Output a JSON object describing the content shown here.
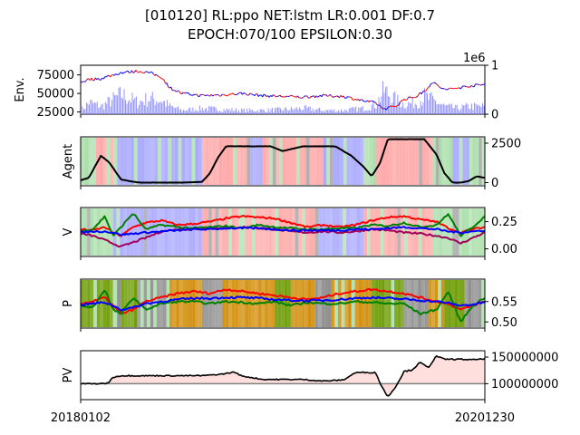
{
  "figure": {
    "title_line1": "[010120] RL:ppo NET:lstm LR:0.001 DF:0.7",
    "title_line2": "EPOCH:070/100 EPSILON:0.30"
  },
  "colors": {
    "price": "#ff0000",
    "price_alt": "#0000ff",
    "volume": "#8a8aff",
    "agent_line": "#000000",
    "buy_bg": "#ff9a9a",
    "sell_bg": "#9a9aff",
    "hold_bg": "#9ad89a",
    "v_red": "#ff0000",
    "v_blue": "#0000ff",
    "v_green": "#008000",
    "v_purple": "#a0005a",
    "p_orange_bg": "#d08a00",
    "p_olive_bg": "#6b9a00",
    "p_gray_bg": "#8a8a8a",
    "pv_line": "#000000",
    "pv_fill": "#ffdede",
    "pv_baseline": "#808080"
  },
  "chart_data": [
    {
      "type": "line",
      "id": "env",
      "ylabel": "Env.",
      "left_ticks": [
        "25000",
        "50000",
        "75000"
      ],
      "left_tick_values": [
        25000,
        50000,
        75000
      ],
      "ylim": [
        22000,
        88000
      ],
      "right_ticks": [
        "0",
        "1"
      ],
      "right_tick_values": [
        0,
        1
      ],
      "right_ylim": [
        0,
        1
      ],
      "right_offset_label": "1e6",
      "x_anchor": [
        0,
        0.02,
        0.05,
        0.1,
        0.14,
        0.17,
        0.2,
        0.22,
        0.25,
        0.3,
        0.35,
        0.4,
        0.45,
        0.5,
        0.55,
        0.6,
        0.65,
        0.7,
        0.73,
        0.75,
        0.78,
        0.8,
        0.83,
        0.85,
        0.87,
        0.9,
        0.93,
        0.96,
        1.0
      ],
      "price_values": [
        65000,
        69000,
        70000,
        78000,
        80000,
        78000,
        72000,
        58000,
        50000,
        47000,
        48000,
        50000,
        47000,
        46000,
        45000,
        47000,
        46000,
        40000,
        37000,
        29000,
        33000,
        42000,
        46000,
        53000,
        65000,
        55000,
        57000,
        60000,
        62000
      ],
      "volume_values": [
        0.1,
        0.3,
        0.2,
        0.5,
        0.3,
        0.4,
        0.35,
        0.2,
        0.1,
        0.15,
        0.12,
        0.1,
        0.1,
        0.12,
        0.15,
        0.1,
        0.1,
        0.15,
        0.25,
        0.6,
        0.35,
        0.25,
        0.3,
        0.45,
        0.35,
        0.2,
        0.15,
        0.2,
        0.2
      ]
    },
    {
      "type": "line",
      "id": "agent",
      "ylabel": "Agent",
      "right_ticks": [
        "0",
        "2500"
      ],
      "right_tick_values": [
        0,
        2500
      ],
      "ylim": [
        -200,
        2900
      ],
      "x": [
        0,
        0.02,
        0.05,
        0.07,
        0.1,
        0.13,
        0.15,
        0.2,
        0.25,
        0.3,
        0.32,
        0.34,
        0.36,
        0.4,
        0.45,
        0.47,
        0.5,
        0.55,
        0.58,
        0.6,
        0.63,
        0.67,
        0.7,
        0.72,
        0.74,
        0.76,
        0.8,
        0.85,
        0.88,
        0.9,
        0.92,
        0.94,
        0.96,
        0.98,
        1.0
      ],
      "values": [
        150,
        300,
        1700,
        1300,
        200,
        50,
        0,
        0,
        0,
        50,
        600,
        1600,
        2300,
        2300,
        2300,
        2300,
        2000,
        2300,
        2300,
        2300,
        2300,
        1700,
        1000,
        400,
        1200,
        2750,
        2750,
        2750,
        1800,
        600,
        0,
        0,
        100,
        400,
        300
      ],
      "bands": [
        [
          0.0,
          0.02,
          "hold"
        ],
        [
          0.02,
          0.09,
          "buy"
        ],
        [
          0.09,
          0.3,
          "sell"
        ],
        [
          0.3,
          0.42,
          "buy"
        ],
        [
          0.42,
          0.45,
          "sell"
        ],
        [
          0.45,
          0.6,
          "buy"
        ],
        [
          0.6,
          0.7,
          "sell"
        ],
        [
          0.7,
          0.73,
          "hold"
        ],
        [
          0.73,
          0.87,
          "buy"
        ],
        [
          0.87,
          0.92,
          "hold"
        ],
        [
          0.92,
          0.97,
          "sell"
        ],
        [
          0.97,
          1.0,
          "hold"
        ]
      ]
    },
    {
      "type": "line",
      "id": "v",
      "ylabel": "V",
      "right_ticks": [
        "0.00",
        "0.25"
      ],
      "right_tick_values": [
        0.0,
        0.25
      ],
      "ylim": [
        -0.07,
        0.38
      ],
      "x": [
        0,
        0.03,
        0.06,
        0.08,
        0.1,
        0.13,
        0.16,
        0.2,
        0.24,
        0.28,
        0.32,
        0.36,
        0.4,
        0.44,
        0.48,
        0.52,
        0.56,
        0.6,
        0.64,
        0.68,
        0.72,
        0.76,
        0.8,
        0.84,
        0.88,
        0.91,
        0.94,
        0.97,
        1.0
      ],
      "series": [
        {
          "color_key": "v_red",
          "values": [
            0.18,
            0.17,
            0.2,
            0.15,
            0.12,
            0.2,
            0.24,
            0.26,
            0.22,
            0.23,
            0.25,
            0.28,
            0.3,
            0.29,
            0.28,
            0.24,
            0.2,
            0.22,
            0.2,
            0.22,
            0.26,
            0.29,
            0.3,
            0.27,
            0.25,
            0.19,
            0.15,
            0.18,
            0.2
          ]
        },
        {
          "color_key": "v_blue",
          "values": [
            0.15,
            0.16,
            0.16,
            0.15,
            0.13,
            0.14,
            0.15,
            0.16,
            0.17,
            0.18,
            0.18,
            0.19,
            0.19,
            0.19,
            0.18,
            0.17,
            0.17,
            0.17,
            0.17,
            0.18,
            0.18,
            0.19,
            0.2,
            0.19,
            0.18,
            0.16,
            0.15,
            0.16,
            0.17
          ]
        },
        {
          "color_key": "v_green",
          "values": [
            0.16,
            0.18,
            0.3,
            0.12,
            0.2,
            0.33,
            0.18,
            0.22,
            0.2,
            0.19,
            0.2,
            0.21,
            0.19,
            0.22,
            0.2,
            0.19,
            0.18,
            0.18,
            0.19,
            0.19,
            0.22,
            0.21,
            0.24,
            0.2,
            0.22,
            0.32,
            0.12,
            0.2,
            0.3
          ]
        },
        {
          "color_key": "v_purple",
          "values": [
            0.14,
            0.12,
            0.08,
            0.05,
            0.02,
            0.06,
            0.1,
            0.16,
            0.18,
            0.18,
            0.19,
            0.19,
            0.2,
            0.19,
            0.18,
            0.16,
            0.15,
            0.16,
            0.15,
            0.16,
            0.18,
            0.17,
            0.15,
            0.14,
            0.12,
            0.1,
            0.05,
            0.1,
            0.15
          ]
        }
      ],
      "bands": [
        [
          0.0,
          0.08,
          "hold"
        ],
        [
          0.08,
          0.3,
          "sell"
        ],
        [
          0.3,
          0.44,
          "buy"
        ],
        [
          0.44,
          0.58,
          "buy"
        ],
        [
          0.58,
          0.7,
          "sell"
        ],
        [
          0.7,
          0.8,
          "buy"
        ],
        [
          0.8,
          0.87,
          "buy"
        ],
        [
          0.87,
          0.92,
          "hold"
        ],
        [
          0.92,
          1.0,
          "hold"
        ]
      ]
    },
    {
      "type": "line",
      "id": "p",
      "ylabel": "P",
      "right_ticks": [
        "0.50",
        "0.55"
      ],
      "right_tick_values": [
        0.5,
        0.55
      ],
      "ylim": [
        0.485,
        0.605
      ],
      "x": [
        0,
        0.03,
        0.06,
        0.08,
        0.1,
        0.13,
        0.16,
        0.2,
        0.24,
        0.28,
        0.32,
        0.36,
        0.4,
        0.44,
        0.48,
        0.52,
        0.56,
        0.6,
        0.64,
        0.68,
        0.72,
        0.76,
        0.8,
        0.84,
        0.88,
        0.91,
        0.94,
        0.97,
        1.0
      ],
      "series": [
        {
          "color_key": "v_red",
          "values": [
            0.545,
            0.55,
            0.56,
            0.54,
            0.52,
            0.53,
            0.55,
            0.56,
            0.57,
            0.575,
            0.57,
            0.58,
            0.575,
            0.57,
            0.565,
            0.56,
            0.555,
            0.56,
            0.57,
            0.575,
            0.58,
            0.575,
            0.57,
            0.56,
            0.55,
            0.545,
            0.53,
            0.54,
            0.55
          ]
        },
        {
          "color_key": "v_blue",
          "values": [
            0.542,
            0.545,
            0.548,
            0.54,
            0.53,
            0.535,
            0.545,
            0.55,
            0.555,
            0.558,
            0.558,
            0.56,
            0.56,
            0.558,
            0.555,
            0.553,
            0.552,
            0.553,
            0.555,
            0.558,
            0.56,
            0.558,
            0.556,
            0.553,
            0.55,
            0.546,
            0.54,
            0.543,
            0.548
          ]
        },
        {
          "color_key": "v_green",
          "values": [
            0.54,
            0.535,
            0.58,
            0.53,
            0.52,
            0.56,
            0.53,
            0.545,
            0.55,
            0.55,
            0.545,
            0.55,
            0.548,
            0.545,
            0.55,
            0.54,
            0.548,
            0.545,
            0.545,
            0.55,
            0.548,
            0.545,
            0.545,
            0.52,
            0.53,
            0.575,
            0.5,
            0.54,
            0.56
          ]
        }
      ],
      "bands": [
        [
          0.0,
          0.08,
          "olive"
        ],
        [
          0.08,
          0.1,
          "gray"
        ],
        [
          0.1,
          0.14,
          "olive"
        ],
        [
          0.14,
          0.22,
          "gray"
        ],
        [
          0.22,
          0.3,
          "orange"
        ],
        [
          0.3,
          0.35,
          "gray"
        ],
        [
          0.35,
          0.48,
          "orange"
        ],
        [
          0.48,
          0.52,
          "olive"
        ],
        [
          0.52,
          0.58,
          "orange"
        ],
        [
          0.58,
          0.62,
          "gray"
        ],
        [
          0.62,
          0.72,
          "orange"
        ],
        [
          0.72,
          0.8,
          "olive"
        ],
        [
          0.8,
          0.86,
          "gray"
        ],
        [
          0.86,
          0.9,
          "orange"
        ],
        [
          0.9,
          0.95,
          "olive"
        ],
        [
          0.95,
          1.0,
          "gray"
        ]
      ]
    },
    {
      "type": "area",
      "id": "pv",
      "ylabel": "PV",
      "right_ticks": [
        "100000000",
        "150000000"
      ],
      "right_tick_values": [
        100000000,
        150000000
      ],
      "ylim": [
        70000000,
        162000000
      ],
      "baseline": 100000000,
      "x": [
        0,
        0.04,
        0.06,
        0.07,
        0.08,
        0.1,
        0.15,
        0.2,
        0.25,
        0.3,
        0.35,
        0.38,
        0.4,
        0.42,
        0.45,
        0.5,
        0.55,
        0.6,
        0.65,
        0.68,
        0.7,
        0.73,
        0.74,
        0.76,
        0.78,
        0.8,
        0.82,
        0.84,
        0.86,
        0.88,
        0.9,
        0.94,
        0.97,
        1.0
      ],
      "values": [
        100000000,
        100000000,
        100000000,
        103000000,
        112000000,
        115000000,
        115000000,
        115000000,
        115000000,
        115000000,
        118000000,
        122000000,
        114000000,
        112000000,
        108000000,
        108000000,
        108000000,
        105000000,
        107000000,
        121000000,
        121000000,
        121000000,
        102000000,
        75000000,
        95000000,
        123000000,
        126000000,
        140000000,
        130000000,
        152000000,
        146000000,
        146000000,
        145000000,
        147000000
      ]
    }
  ],
  "x_axis": {
    "start_label": "20180102",
    "end_label": "20201230"
  }
}
